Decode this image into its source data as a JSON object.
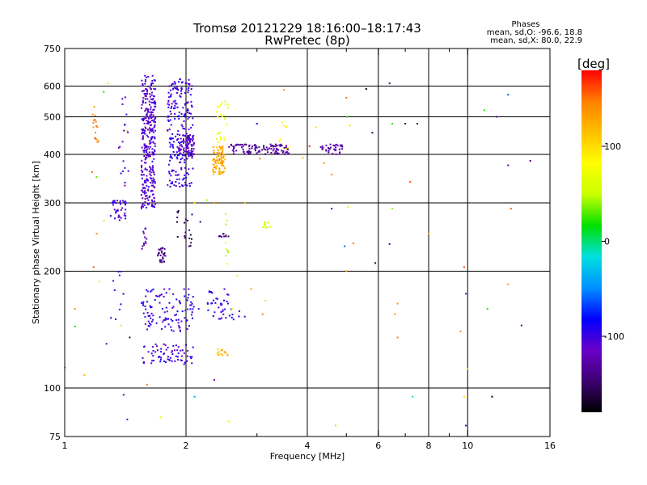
{
  "chart_data": {
    "type": "scatter",
    "title": "Tromsø 20121229 18:16:00–18:17:43",
    "subtitle": "RwPretec (8p)",
    "stats": {
      "heading": "Phases",
      "line1": "mean, sd,O: -96.6, 18.8",
      "line2": "mean, sd,X: 80.0, 22.9"
    },
    "xlabel": "Frequency [MHz]",
    "ylabel": "Stationary phase Virtual Height [km]",
    "x_scale": "log",
    "y_scale": "log",
    "xlim": [
      1,
      16
    ],
    "ylim": [
      75,
      750
    ],
    "x_ticks": [
      1,
      2,
      4,
      6,
      8,
      10,
      16
    ],
    "y_ticks": [
      75,
      100,
      200,
      300,
      400,
      500,
      600,
      750
    ],
    "x_minor_ticks": [
      3,
      5,
      7,
      9
    ],
    "x_gridlines": [
      2,
      4,
      6,
      8,
      10
    ],
    "y_gridlines": [
      100,
      200,
      300,
      400,
      500,
      600
    ],
    "grid": true,
    "colorbar": {
      "label": "[deg]",
      "range": [
        -180,
        180
      ],
      "ticks": [
        100,
        0,
        -100
      ],
      "colormap": [
        "#000000",
        "#3c0070",
        "#6a00c8",
        "#0000ff",
        "#0090ff",
        "#00e0e0",
        "#00e000",
        "#c8ff00",
        "#ffff00",
        "#ffc000",
        "#ff8000",
        "#ff0000"
      ]
    },
    "series": [
      {
        "type": "band",
        "phase": -110,
        "fmin": 1.55,
        "fmax": 1.68,
        "hmin": 290,
        "hmax": 640,
        "count": 320
      },
      {
        "type": "band",
        "phase": -100,
        "fmin": 1.8,
        "fmax": 2.08,
        "hmin": 330,
        "hmax": 630,
        "count": 240
      },
      {
        "type": "band",
        "phase": -115,
        "fmin": 1.92,
        "fmax": 2.1,
        "hmin": 395,
        "hmax": 450,
        "count": 60
      },
      {
        "type": "band",
        "phase": 125,
        "fmin": 2.33,
        "fmax": 2.5,
        "hmin": 355,
        "hmax": 420,
        "count": 90
      },
      {
        "type": "band",
        "phase": 70,
        "fmin": 2.38,
        "fmax": 2.55,
        "hmin": 430,
        "hmax": 550,
        "count": 25
      },
      {
        "type": "band",
        "phase": -130,
        "fmin": 2.55,
        "fmax": 3.6,
        "hmin": 400,
        "hmax": 425,
        "count": 110
      },
      {
        "type": "band",
        "phase": -125,
        "fmin": 4.3,
        "fmax": 4.9,
        "hmin": 400,
        "hmax": 425,
        "count": 35
      },
      {
        "type": "band",
        "phase": 80,
        "fmin": 3.4,
        "fmax": 3.6,
        "hmin": 410,
        "hmax": 490,
        "count": 8
      },
      {
        "type": "band",
        "phase": -105,
        "fmin": 1.3,
        "fmax": 1.42,
        "hmin": 270,
        "hmax": 305,
        "count": 40
      },
      {
        "type": "band",
        "phase": -105,
        "fmin": 1.36,
        "fmax": 1.44,
        "hmin": 330,
        "hmax": 570,
        "count": 18
      },
      {
        "type": "band",
        "phase": 145,
        "fmin": 1.17,
        "fmax": 1.22,
        "hmin": 430,
        "hmax": 540,
        "count": 16
      },
      {
        "type": "band",
        "phase": -140,
        "fmin": 1.7,
        "fmax": 1.78,
        "hmin": 210,
        "hmax": 230,
        "count": 30
      },
      {
        "type": "band",
        "phase": -120,
        "fmin": 1.55,
        "fmax": 1.6,
        "hmin": 225,
        "hmax": 260,
        "count": 12
      },
      {
        "type": "band",
        "phase": -150,
        "fmin": 1.9,
        "fmax": 2.08,
        "hmin": 230,
        "hmax": 290,
        "count": 20
      },
      {
        "type": "band",
        "phase": -140,
        "fmin": 2.4,
        "fmax": 2.55,
        "hmin": 245,
        "hmax": 250,
        "count": 12
      },
      {
        "type": "band",
        "phase": 50,
        "fmin": 3.1,
        "fmax": 3.25,
        "hmin": 258,
        "hmax": 268,
        "count": 12
      },
      {
        "type": "band",
        "phase": 55,
        "fmin": 2.5,
        "fmax": 2.55,
        "hmin": 200,
        "hmax": 285,
        "count": 10
      },
      {
        "type": "band",
        "phase": -100,
        "fmin": 1.55,
        "fmax": 2.1,
        "hmin": 140,
        "hmax": 180,
        "count": 110
      },
      {
        "type": "band",
        "phase": -100,
        "fmin": 2.25,
        "fmax": 2.55,
        "hmin": 150,
        "hmax": 180,
        "count": 35
      },
      {
        "type": "band",
        "phase": -105,
        "fmin": 1.55,
        "fmax": 2.1,
        "hmin": 115,
        "hmax": 130,
        "count": 70
      },
      {
        "type": "band",
        "phase": 120,
        "fmin": 2.38,
        "fmax": 2.55,
        "hmin": 121,
        "hmax": 126,
        "count": 14
      },
      {
        "type": "band",
        "phase": -90,
        "fmin": 2.55,
        "fmax": 2.8,
        "hmin": 150,
        "hmax": 180,
        "count": 8
      },
      {
        "type": "band",
        "phase": -100,
        "fmin": 1.3,
        "fmax": 1.4,
        "hmin": 150,
        "hmax": 200,
        "count": 10
      }
    ],
    "scatter_points": [
      [
        1.0,
        113,
        -100
      ],
      [
        1.06,
        160,
        140
      ],
      [
        1.06,
        144,
        20
      ],
      [
        1.12,
        108,
        120
      ],
      [
        1.17,
        360,
        150
      ],
      [
        1.2,
        350,
        30
      ],
      [
        1.18,
        205,
        160
      ],
      [
        1.2,
        250,
        140
      ],
      [
        1.22,
        188,
        60
      ],
      [
        1.27,
        130,
        -100
      ],
      [
        1.25,
        270,
        90
      ],
      [
        1.28,
        610,
        60
      ],
      [
        1.25,
        580,
        20
      ],
      [
        1.38,
        145,
        50
      ],
      [
        1.4,
        96,
        -120
      ],
      [
        1.43,
        83,
        -110
      ],
      [
        1.45,
        135,
        -160
      ],
      [
        1.43,
        460,
        120
      ],
      [
        1.73,
        84,
        60
      ],
      [
        1.6,
        102,
        150
      ],
      [
        2.1,
        95,
        -40
      ],
      [
        2.15,
        160,
        -100
      ],
      [
        2.1,
        300,
        100
      ],
      [
        2.17,
        268,
        -150
      ],
      [
        2.25,
        305,
        40
      ],
      [
        2.35,
        300,
        140
      ],
      [
        2.35,
        105,
        -120
      ],
      [
        2.55,
        82,
        55
      ],
      [
        2.6,
        160,
        60
      ],
      [
        2.68,
        195,
        60
      ],
      [
        2.9,
        180,
        130
      ],
      [
        2.8,
        300,
        120
      ],
      [
        3.0,
        480,
        -100
      ],
      [
        3.1,
        155,
        150
      ],
      [
        3.15,
        168,
        100
      ],
      [
        3.05,
        390,
        150
      ],
      [
        3.5,
        587,
        130
      ],
      [
        3.9,
        392,
        110
      ],
      [
        4.05,
        420,
        170
      ],
      [
        4.2,
        470,
        100
      ],
      [
        4.4,
        380,
        140
      ],
      [
        4.6,
        355,
        140
      ],
      [
        4.6,
        290,
        -130
      ],
      [
        4.7,
        80,
        110
      ],
      [
        4.95,
        232,
        -60
      ],
      [
        5.2,
        236,
        150
      ],
      [
        5.0,
        200,
        140
      ],
      [
        5.0,
        560,
        150
      ],
      [
        5.02,
        500,
        20
      ],
      [
        5.1,
        475,
        100
      ],
      [
        5.05,
        293,
        50
      ],
      [
        5.6,
        590,
        -170
      ],
      [
        5.8,
        455,
        -150
      ],
      [
        5.9,
        210,
        -170
      ],
      [
        6.4,
        610,
        -140
      ],
      [
        6.4,
        235,
        -130
      ],
      [
        6.5,
        290,
        40
      ],
      [
        6.5,
        480,
        20
      ],
      [
        6.6,
        155,
        140
      ],
      [
        6.7,
        135,
        150
      ],
      [
        6.7,
        165,
        140
      ],
      [
        7.0,
        480,
        -160
      ],
      [
        7.2,
        340,
        160
      ],
      [
        7.3,
        95,
        -10
      ],
      [
        7.5,
        480,
        -150
      ],
      [
        9.6,
        140,
        140
      ],
      [
        9.8,
        95,
        100
      ],
      [
        9.9,
        80,
        -100
      ],
      [
        9.8,
        205,
        160
      ],
      [
        9.9,
        175,
        -120
      ],
      [
        10.0,
        112,
        110
      ],
      [
        11.0,
        520,
        20
      ],
      [
        11.2,
        160,
        20
      ],
      [
        11.5,
        95,
        -180
      ],
      [
        11.8,
        500,
        -130
      ],
      [
        12.6,
        570,
        -60
      ],
      [
        12.6,
        375,
        -120
      ],
      [
        12.6,
        185,
        140
      ],
      [
        13.6,
        145,
        -130
      ],
      [
        14.3,
        385,
        -130
      ],
      [
        12.8,
        290,
        160
      ],
      [
        8.0,
        250,
        120
      ]
    ]
  }
}
